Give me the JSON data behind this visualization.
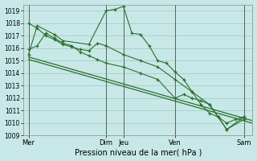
{
  "xlabel": "Pression niveau de la mer( hPa )",
  "bg_color": "#c8e8e8",
  "grid_color": "#99ccbb",
  "line_color": "#2d6e2d",
  "vline_color": "#556655",
  "ylim": [
    1009,
    1019.5
  ],
  "yticks": [
    1009,
    1010,
    1011,
    1012,
    1013,
    1014,
    1015,
    1016,
    1017,
    1018,
    1019
  ],
  "xlim": [
    -0.3,
    13.0
  ],
  "day_positions": [
    0,
    4.5,
    5.5,
    8.5,
    12.5
  ],
  "day_labels": [
    "Mer",
    "Dim",
    "Jeu",
    "Ven",
    "Sam"
  ],
  "series": [
    {
      "x": [
        0,
        0.5,
        1.5,
        2.0,
        3.5,
        4.5,
        5.0,
        5.5,
        6.0,
        6.5,
        7.0,
        7.5,
        8.0,
        8.5,
        9.0,
        9.5,
        10.0,
        10.5,
        11.0,
        11.5,
        12.5
      ],
      "y": [
        1015.5,
        1017.8,
        1017.1,
        1016.6,
        1016.3,
        1019.0,
        1019.1,
        1019.35,
        1017.2,
        1017.1,
        1016.2,
        1015.0,
        1014.8,
        1014.1,
        1013.5,
        1012.5,
        1011.5,
        1010.8,
        1010.5,
        1009.5,
        1010.3
      ],
      "has_markers": true
    },
    {
      "x": [
        0,
        0.5,
        1.0,
        1.5,
        2.0,
        2.5,
        3.0,
        3.5,
        4.0,
        4.5,
        5.5,
        6.5,
        7.5,
        8.5,
        9.5,
        10.5,
        11.5,
        12.5
      ],
      "y": [
        1018.0,
        1017.6,
        1017.0,
        1016.7,
        1016.3,
        1016.1,
        1015.9,
        1015.8,
        1016.4,
        1016.2,
        1015.5,
        1015.0,
        1014.5,
        1013.5,
        1012.5,
        1011.5,
        1009.5,
        1010.5
      ],
      "has_markers": true
    },
    {
      "x": [
        0,
        13.0
      ],
      "y": [
        1015.3,
        1010.2
      ],
      "has_markers": false
    },
    {
      "x": [
        0,
        13.0
      ],
      "y": [
        1015.1,
        1010.0
      ],
      "has_markers": false
    },
    {
      "x": [
        0,
        0.5,
        1.0,
        1.5,
        2.0,
        2.5,
        3.0,
        3.5,
        4.0,
        4.5,
        5.5,
        6.5,
        7.5,
        8.5,
        9.0,
        9.5,
        10.0,
        10.5,
        11.0,
        11.5,
        12.0,
        12.5
      ],
      "y": [
        1015.9,
        1016.2,
        1017.2,
        1016.8,
        1016.4,
        1016.2,
        1015.7,
        1015.4,
        1015.1,
        1014.8,
        1014.5,
        1014.0,
        1013.5,
        1012.0,
        1012.3,
        1012.0,
        1011.8,
        1011.5,
        1010.5,
        1010.0,
        1010.3,
        1010.5
      ],
      "has_markers": true
    }
  ]
}
